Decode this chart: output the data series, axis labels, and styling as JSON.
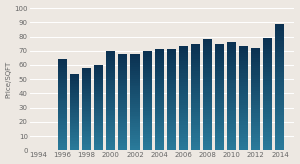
{
  "years": [
    1996,
    1997,
    1998,
    1999,
    2000,
    2001,
    2002,
    2003,
    2004,
    2005,
    2006,
    2007,
    2008,
    2009,
    2010,
    2011,
    2012,
    2013,
    2014
  ],
  "values": [
    64,
    54,
    58,
    60,
    70,
    68,
    68,
    70,
    71,
    71,
    73,
    75,
    78,
    75,
    76,
    73,
    72,
    79,
    89
  ],
  "color_bottom": "#2a7a9a",
  "color_top": "#0a3050",
  "xlabel_ticks": [
    1994,
    1996,
    1998,
    2000,
    2002,
    2004,
    2006,
    2008,
    2010,
    2012,
    2014
  ],
  "ylabel": "Price/SQFT",
  "ylim": [
    0,
    100
  ],
  "yticks": [
    0,
    10,
    20,
    30,
    40,
    50,
    60,
    70,
    80,
    90,
    100
  ],
  "background_color": "#ede8e2",
  "grid_color": "#ffffff",
  "bar_width": 0.75
}
